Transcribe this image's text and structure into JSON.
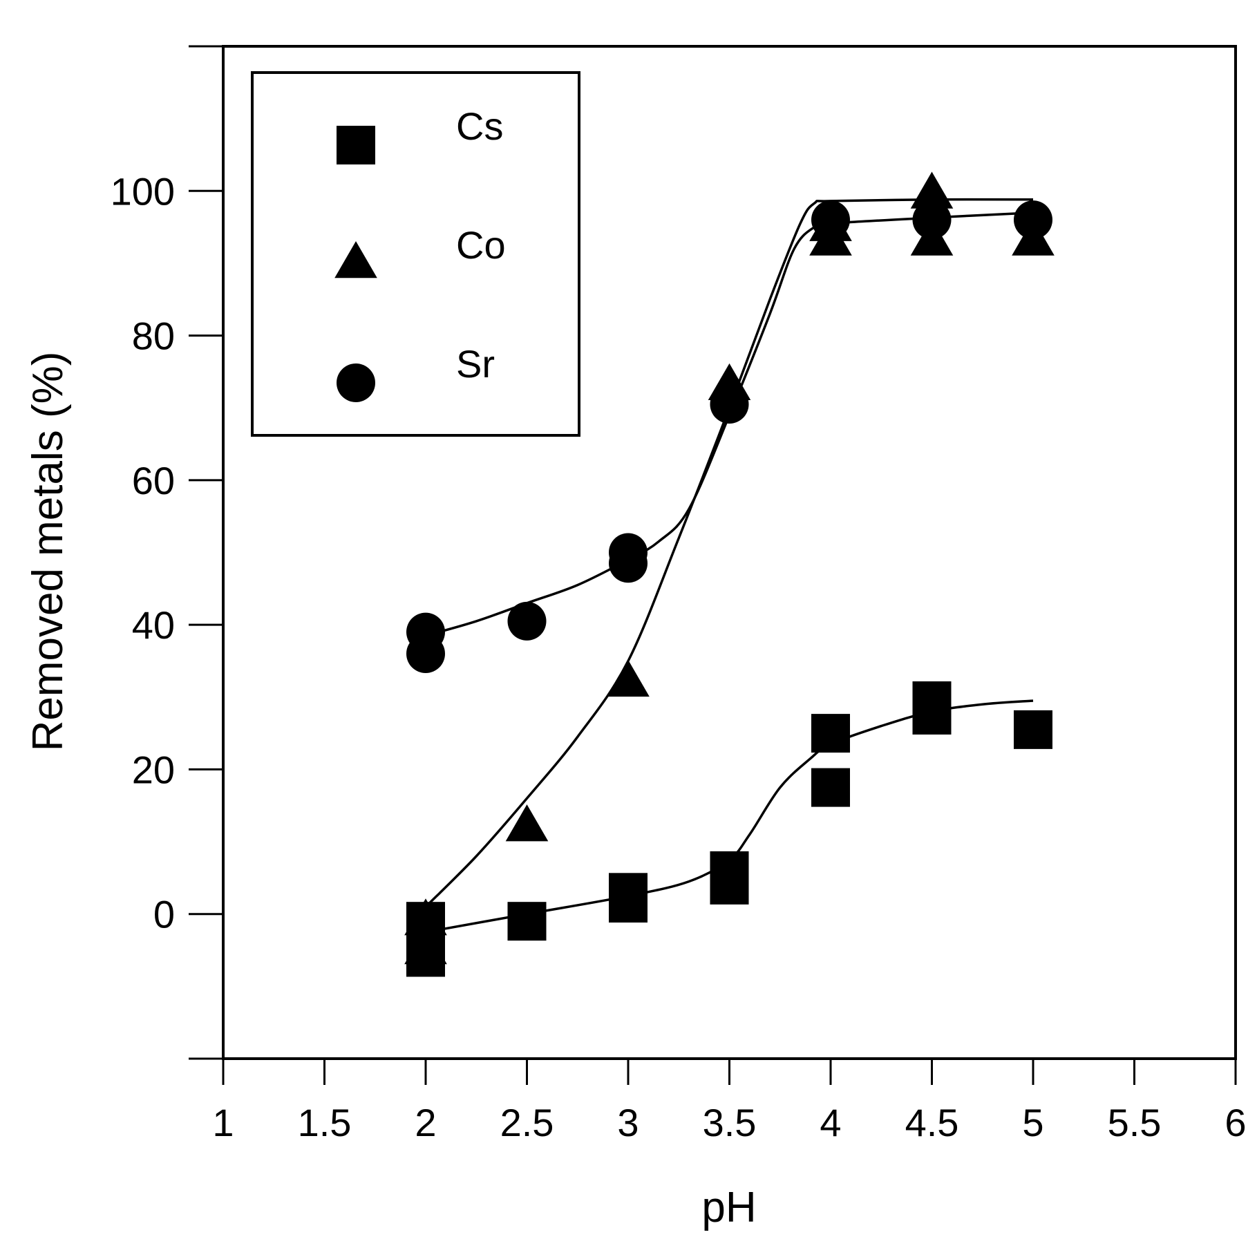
{
  "chart_data": {
    "type": "scatter",
    "title": "",
    "xlabel": "pH",
    "ylabel": "Removed metals (%)",
    "xlim": [
      1,
      6
    ],
    "ylim": [
      -20,
      120
    ],
    "x_ticks": [
      1,
      1.5,
      2,
      2.5,
      3,
      3.5,
      4,
      4.5,
      5,
      5.5,
      6
    ],
    "x_tick_labels": [
      "1",
      "1.5",
      "2",
      "2.5",
      "3",
      "3.5",
      "4",
      "4.5",
      "5",
      "5.5",
      "6"
    ],
    "y_ticks": [
      -20,
      0,
      20,
      40,
      60,
      80,
      100,
      120
    ],
    "y_tick_labels": [
      "",
      "0",
      "20",
      "40",
      "60",
      "80",
      "100",
      ""
    ],
    "grid": false,
    "legend_position": "top-left",
    "series": [
      {
        "name": "Cs",
        "marker": "square",
        "color": "#000000",
        "points": [
          {
            "x": 2,
            "y": -1
          },
          {
            "x": 2,
            "y": -6
          },
          {
            "x": 2.5,
            "y": -1
          },
          {
            "x": 3,
            "y": 3
          },
          {
            "x": 3,
            "y": 1.5
          },
          {
            "x": 3.5,
            "y": 6
          },
          {
            "x": 3.5,
            "y": 4
          },
          {
            "x": 4,
            "y": 25
          },
          {
            "x": 4,
            "y": 17.5
          },
          {
            "x": 4.5,
            "y": 29.5
          },
          {
            "x": 4.5,
            "y": 27.5
          },
          {
            "x": 5,
            "y": 25.5
          }
        ],
        "fit_curve": [
          {
            "x": 2,
            "y": -2.5
          },
          {
            "x": 2.5,
            "y": 0
          },
          {
            "x": 3,
            "y": 2.5
          },
          {
            "x": 3.3,
            "y": 4.5
          },
          {
            "x": 3.5,
            "y": 7.5
          },
          {
            "x": 3.6,
            "y": 11
          },
          {
            "x": 3.75,
            "y": 17.5
          },
          {
            "x": 3.9,
            "y": 21.5
          },
          {
            "x": 4,
            "y": 23.5
          },
          {
            "x": 4.25,
            "y": 26
          },
          {
            "x": 4.5,
            "y": 28
          },
          {
            "x": 4.75,
            "y": 29
          },
          {
            "x": 5,
            "y": 29.5
          }
        ]
      },
      {
        "name": "Co",
        "marker": "triangle",
        "color": "#000000",
        "points": [
          {
            "x": 2,
            "y": -1
          },
          {
            "x": 2,
            "y": -5
          },
          {
            "x": 2.5,
            "y": 12
          },
          {
            "x": 3,
            "y": 32
          },
          {
            "x": 3.5,
            "y": 73
          },
          {
            "x": 4,
            "y": 95
          },
          {
            "x": 4,
            "y": 93
          },
          {
            "x": 4.5,
            "y": 99.5
          },
          {
            "x": 4.5,
            "y": 93
          },
          {
            "x": 5,
            "y": 93
          }
        ],
        "fit_curve": [
          {
            "x": 2,
            "y": 1
          },
          {
            "x": 2.25,
            "y": 8
          },
          {
            "x": 2.5,
            "y": 16
          },
          {
            "x": 2.75,
            "y": 24.5
          },
          {
            "x": 3,
            "y": 35
          },
          {
            "x": 3.25,
            "y": 52
          },
          {
            "x": 3.5,
            "y": 70
          },
          {
            "x": 3.7,
            "y": 85
          },
          {
            "x": 3.85,
            "y": 95.5
          },
          {
            "x": 3.92,
            "y": 98.3
          },
          {
            "x": 4,
            "y": 98.6
          },
          {
            "x": 4.5,
            "y": 98.8
          },
          {
            "x": 5,
            "y": 98.8
          }
        ]
      },
      {
        "name": "Sr",
        "marker": "circle",
        "color": "#000000",
        "points": [
          {
            "x": 2,
            "y": 39
          },
          {
            "x": 2,
            "y": 36
          },
          {
            "x": 2.5,
            "y": 40.5
          },
          {
            "x": 3,
            "y": 50
          },
          {
            "x": 3,
            "y": 48.5
          },
          {
            "x": 3.5,
            "y": 70.5
          },
          {
            "x": 4,
            "y": 96
          },
          {
            "x": 4.5,
            "y": 96
          },
          {
            "x": 5,
            "y": 96
          }
        ],
        "fit_curve": [
          {
            "x": 2,
            "y": 38.5
          },
          {
            "x": 2.25,
            "y": 40.5
          },
          {
            "x": 2.5,
            "y": 43
          },
          {
            "x": 2.75,
            "y": 45.5
          },
          {
            "x": 3,
            "y": 49
          },
          {
            "x": 3.15,
            "y": 51.5
          },
          {
            "x": 3.3,
            "y": 56
          },
          {
            "x": 3.5,
            "y": 69
          },
          {
            "x": 3.7,
            "y": 83
          },
          {
            "x": 3.82,
            "y": 92
          },
          {
            "x": 3.92,
            "y": 95
          },
          {
            "x": 4,
            "y": 95.5
          },
          {
            "x": 4.5,
            "y": 96.3
          },
          {
            "x": 5,
            "y": 97
          }
        ]
      }
    ]
  }
}
